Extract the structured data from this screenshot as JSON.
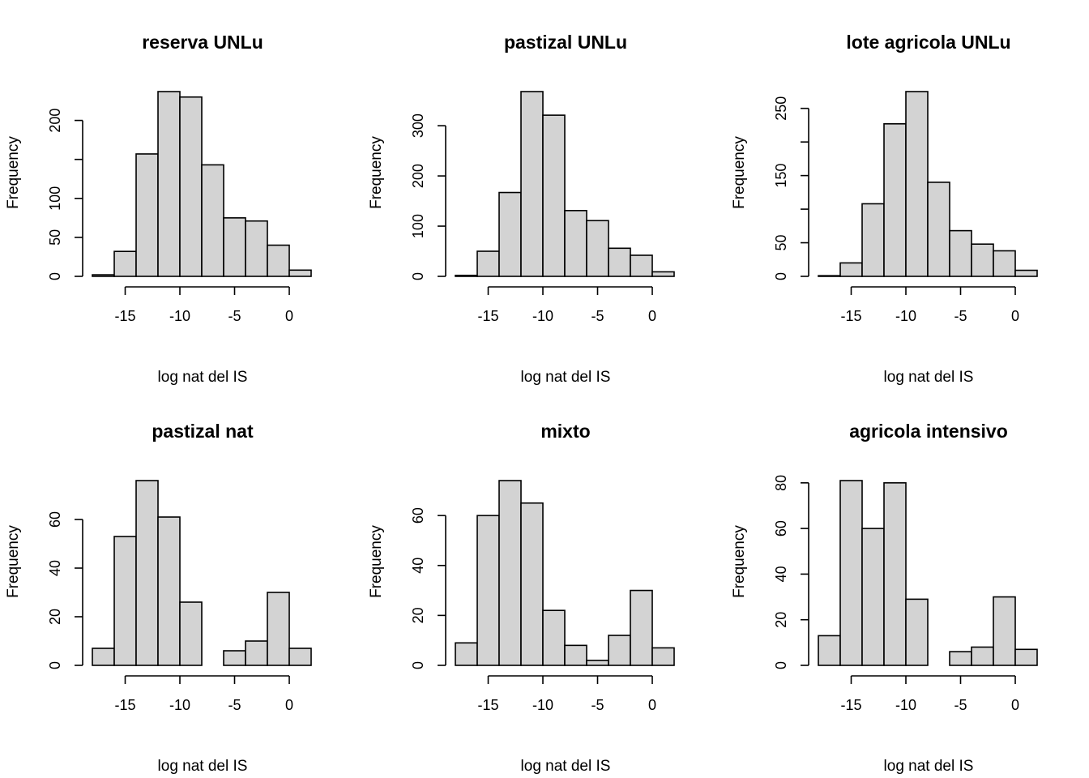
{
  "chart_data": [
    {
      "type": "bar",
      "title": "reserva UNLu",
      "xlabel": "log nat del IS",
      "ylabel": "Frequency",
      "bin_edges": [
        -18,
        -16,
        -14,
        -12,
        -10,
        -8,
        -6,
        -4,
        -2,
        0,
        2
      ],
      "values": [
        2,
        32,
        157,
        237,
        230,
        143,
        75,
        71,
        40,
        8
      ],
      "xticks": [
        -15,
        -10,
        -5,
        0
      ],
      "xtick_labels": [
        "-15",
        "-10",
        "-5",
        "0"
      ],
      "yticks": [
        0,
        50,
        100,
        150,
        200
      ],
      "ytick_labels": [
        "0",
        "50",
        "100",
        "",
        "200"
      ],
      "ylim": [
        0,
        237
      ],
      "fill": "#d3d3d3"
    },
    {
      "type": "bar",
      "title": "pastizal UNLu",
      "xlabel": "log nat del IS",
      "ylabel": "Frequency",
      "bin_edges": [
        -18,
        -16,
        -14,
        -12,
        -10,
        -8,
        -6,
        -4,
        -2,
        0,
        2
      ],
      "values": [
        2,
        50,
        167,
        368,
        321,
        131,
        111,
        56,
        42,
        9
      ],
      "xticks": [
        -15,
        -10,
        -5,
        0
      ],
      "xtick_labels": [
        "-15",
        "-10",
        "-5",
        "0"
      ],
      "yticks": [
        0,
        100,
        200,
        300
      ],
      "ytick_labels": [
        "0",
        "100",
        "200",
        "300"
      ],
      "ylim": [
        0,
        368
      ],
      "fill": "#d3d3d3"
    },
    {
      "type": "bar",
      "title": "lote agricola UNLu",
      "xlabel": "log nat del IS",
      "ylabel": "Frequency",
      "bin_edges": [
        -18,
        -16,
        -14,
        -12,
        -10,
        -8,
        -6,
        -4,
        -2,
        0,
        2
      ],
      "values": [
        1,
        20,
        108,
        227,
        275,
        140,
        68,
        48,
        38,
        9
      ],
      "xticks": [
        -15,
        -10,
        -5,
        0
      ],
      "xtick_labels": [
        "-15",
        "-10",
        "-5",
        "0"
      ],
      "yticks": [
        0,
        50,
        100,
        150,
        200,
        250
      ],
      "ytick_labels": [
        "0",
        "50",
        "",
        "150",
        "",
        "250"
      ],
      "ylim": [
        0,
        275
      ],
      "fill": "#d3d3d3"
    },
    {
      "type": "bar",
      "title": "pastizal nat",
      "xlabel": "log nat del IS",
      "ylabel": "Frequency",
      "bin_edges": [
        -18,
        -16,
        -14,
        -12,
        -10,
        -8,
        -6,
        -4,
        -2,
        0,
        2
      ],
      "values": [
        7,
        53,
        76,
        61,
        26,
        0,
        6,
        10,
        30,
        7
      ],
      "xticks": [
        -15,
        -10,
        -5,
        0
      ],
      "xtick_labels": [
        "-15",
        "-10",
        "-5",
        "0"
      ],
      "yticks": [
        0,
        20,
        40,
        60
      ],
      "ytick_labels": [
        "0",
        "20",
        "40",
        "60"
      ],
      "ylim": [
        0,
        76
      ],
      "fill": "#d3d3d3"
    },
    {
      "type": "bar",
      "title": "mixto",
      "xlabel": "log nat del IS",
      "ylabel": "Frequency",
      "bin_edges": [
        -18,
        -16,
        -14,
        -12,
        -10,
        -8,
        -6,
        -4,
        -2,
        0,
        2
      ],
      "values": [
        9,
        60,
        74,
        65,
        22,
        8,
        2,
        12,
        30,
        7
      ],
      "xticks": [
        -15,
        -10,
        -5,
        0
      ],
      "xtick_labels": [
        "-15",
        "-10",
        "-5",
        "0"
      ],
      "yticks": [
        0,
        20,
        40,
        60
      ],
      "ytick_labels": [
        "0",
        "20",
        "40",
        "60"
      ],
      "ylim": [
        0,
        74
      ],
      "fill": "#d3d3d3"
    },
    {
      "type": "bar",
      "title": "agricola intensivo",
      "xlabel": "log nat del IS",
      "ylabel": "Frequency",
      "bin_edges": [
        -18,
        -16,
        -14,
        -12,
        -10,
        -8,
        -6,
        -4,
        -2,
        0,
        2
      ],
      "values": [
        13,
        81,
        60,
        80,
        29,
        0,
        6,
        8,
        30,
        7
      ],
      "xticks": [
        -15,
        -10,
        -5,
        0
      ],
      "xtick_labels": [
        "-15",
        "-10",
        "-5",
        "0"
      ],
      "yticks": [
        0,
        20,
        40,
        60,
        80
      ],
      "ytick_labels": [
        "0",
        "20",
        "40",
        "60",
        "80"
      ],
      "ylim": [
        0,
        81
      ],
      "fill": "#d3d3d3"
    }
  ]
}
